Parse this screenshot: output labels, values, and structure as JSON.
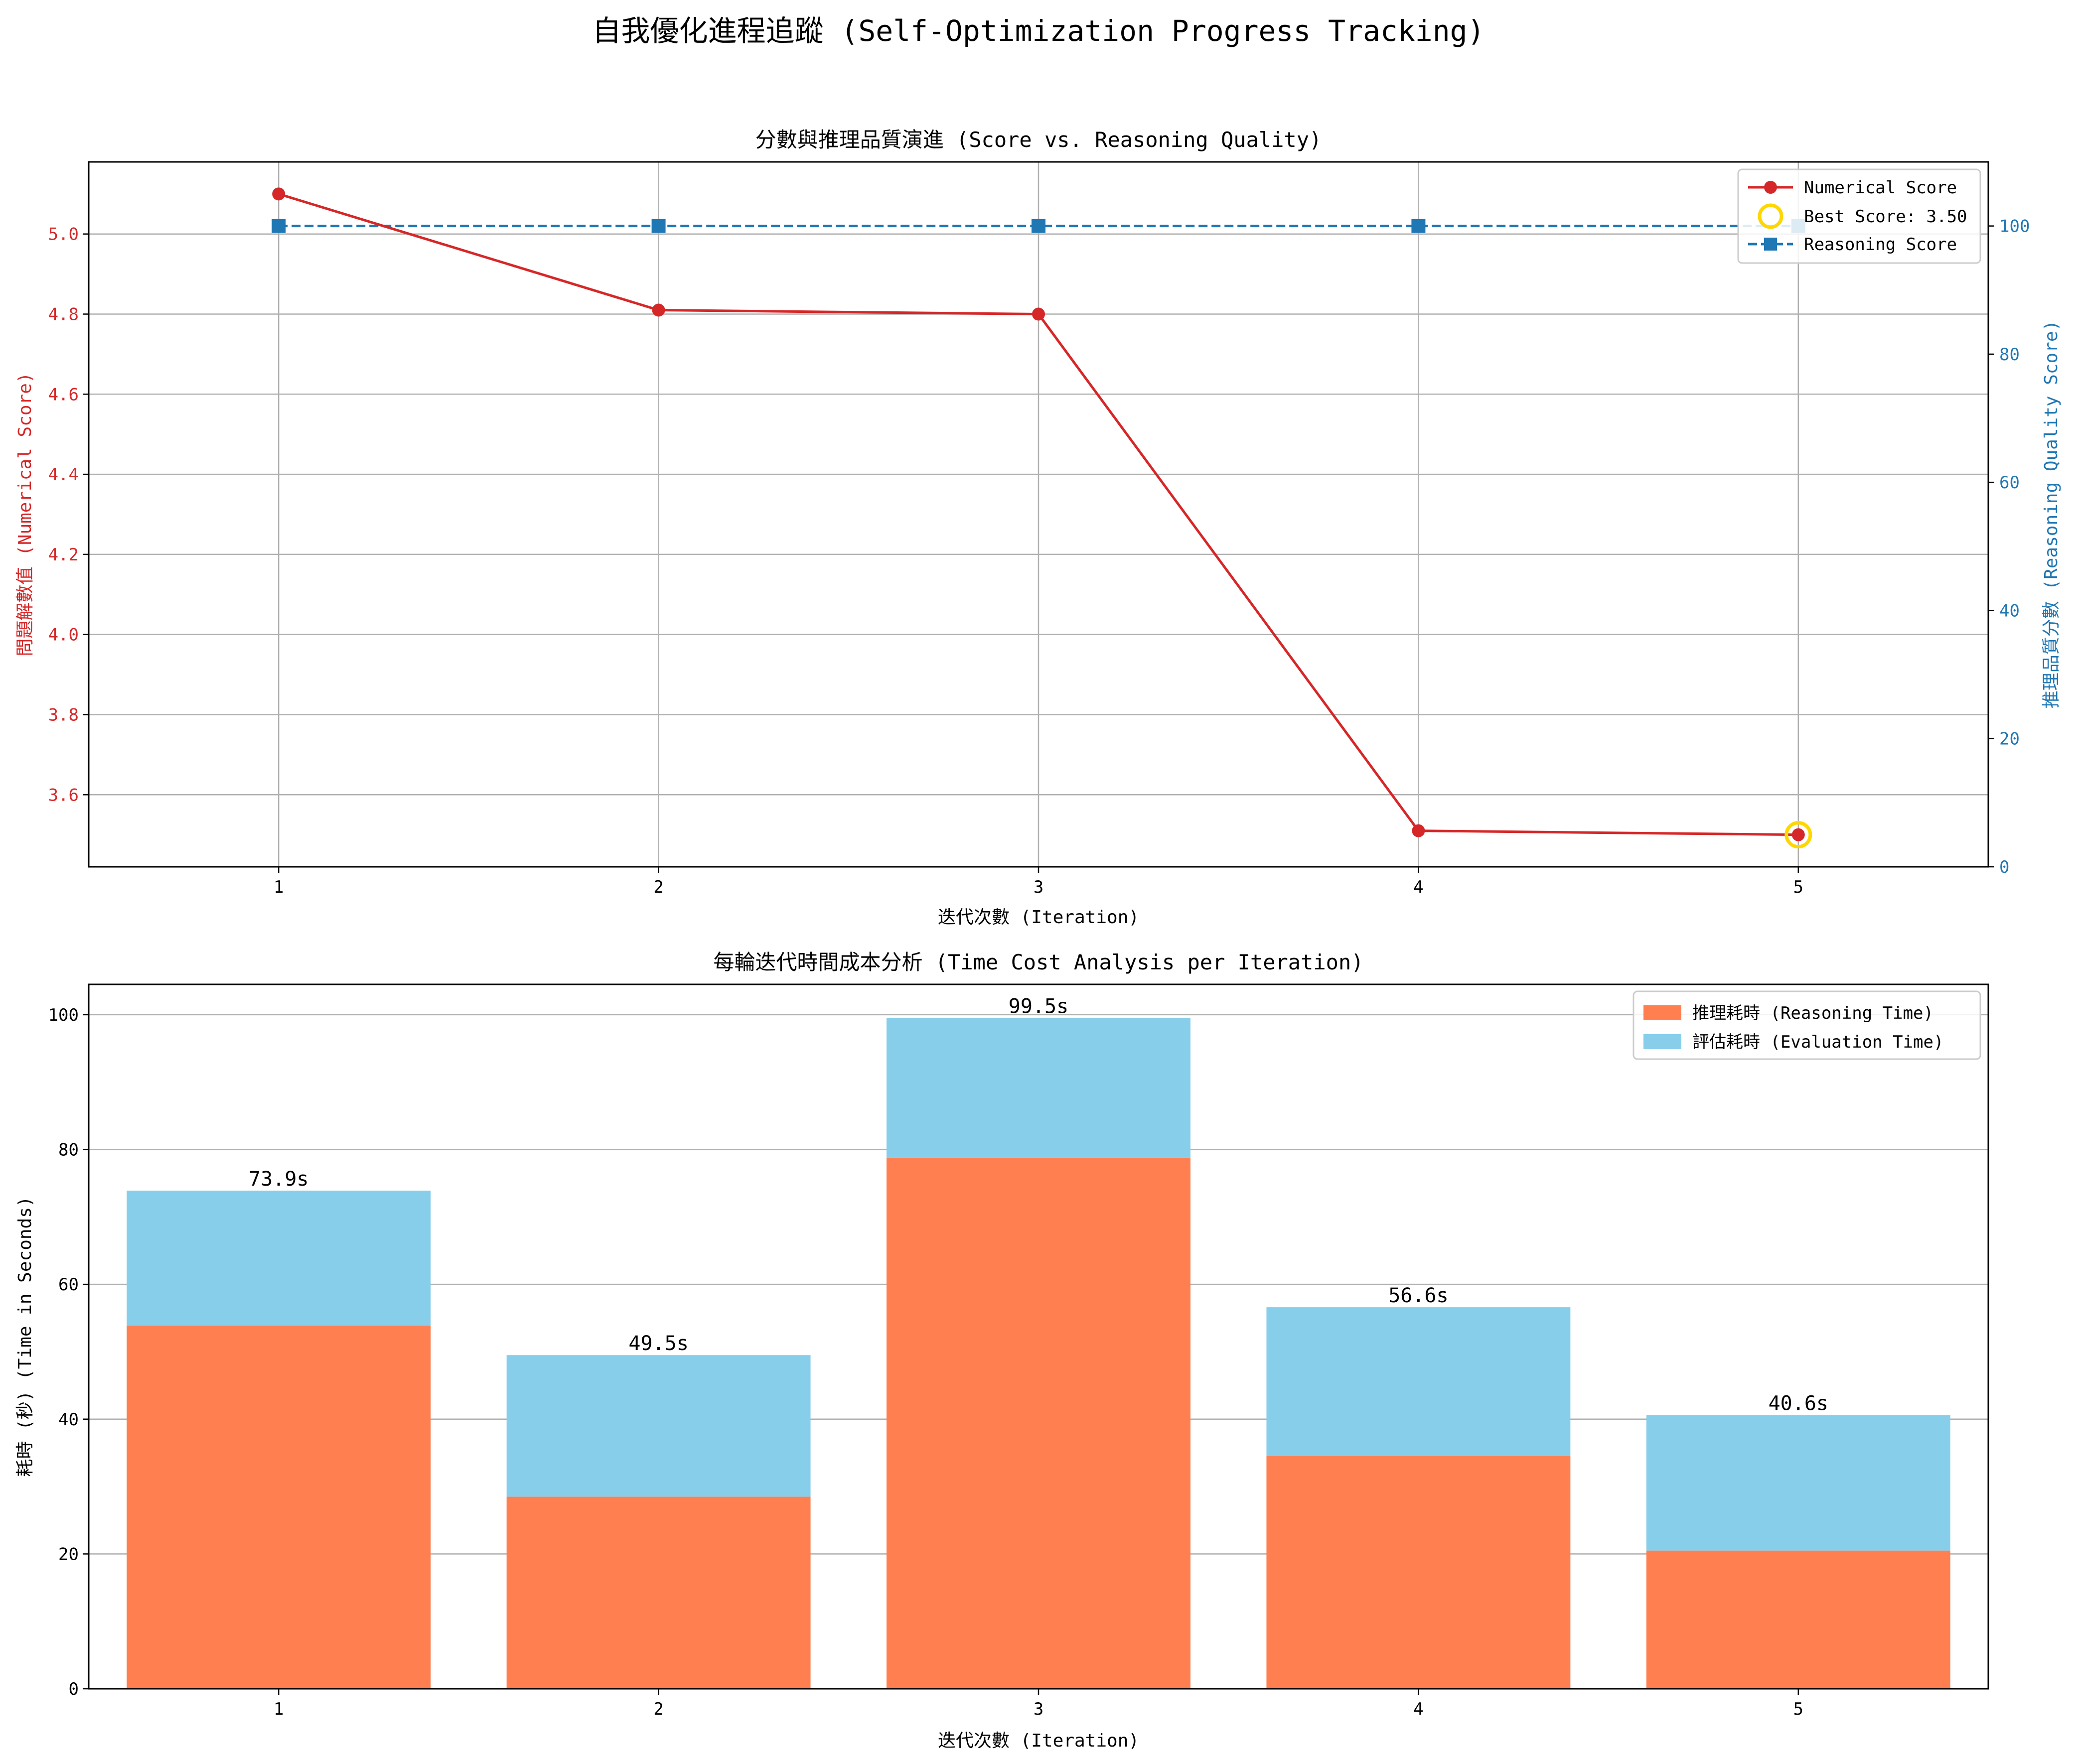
{
  "figure": {
    "suptitle": "自我優化進程追蹤 (Self-Optimization Progress Tracking)"
  },
  "colors": {
    "numerical": "#d62728",
    "reasoning_line": "#1f77b4",
    "best_marker": "#ffd700",
    "reasoning_bar": "#ff7f50",
    "evaluation_bar": "#87ceeb",
    "grid": "#b0b0b0",
    "axis": "#000000"
  },
  "chart_data": [
    {
      "type": "line",
      "title": "分數與推理品質演進 (Score vs. Reasoning Quality)",
      "xlabel": "迭代次數 (Iteration)",
      "ylabel": "問題解數值 (Numerical Score)",
      "ylabel_right": "推理品質分數 (Reasoning Quality Score)",
      "x": [
        1,
        2,
        3,
        4,
        5
      ],
      "xlim": [
        0.5,
        5.5
      ],
      "ylim": [
        3.42,
        5.18
      ],
      "ylim_right": [
        0,
        110
      ],
      "yticks": [
        3.6,
        3.8,
        4.0,
        4.2,
        4.4,
        4.6,
        4.8,
        5.0
      ],
      "yticks_right": [
        0,
        20,
        40,
        60,
        80,
        100
      ],
      "grid": true,
      "legend_position": "top-right",
      "series": [
        {
          "name": "Numerical Score",
          "axis": "left",
          "marker": "circle",
          "style": "solid",
          "values": [
            5.1,
            4.81,
            4.8,
            3.51,
            3.5
          ]
        },
        {
          "name": "Reasoning Score",
          "axis": "right",
          "marker": "square",
          "style": "dashed",
          "values": [
            100,
            100,
            100,
            100,
            100
          ]
        }
      ],
      "annotations": [
        {
          "name": "Best Score: 3.50",
          "x": 5,
          "y": 3.5,
          "marker": "hollow-circle"
        }
      ]
    },
    {
      "type": "bar",
      "stacked": true,
      "title": "每輪迭代時間成本分析 (Time Cost Analysis per Iteration)",
      "xlabel": "迭代次數 (Iteration)",
      "ylabel": "耗時 (秒) (Time in Seconds)",
      "categories": [
        "1",
        "2",
        "3",
        "4",
        "5"
      ],
      "ylim": [
        0,
        104.5
      ],
      "yticks": [
        0,
        20,
        40,
        60,
        80,
        100
      ],
      "grid": "y",
      "legend_position": "top-right",
      "series": [
        {
          "name": "推理耗時 (Reasoning Time)",
          "values": [
            53.9,
            28.5,
            78.8,
            34.6,
            20.5
          ]
        },
        {
          "name": "評估耗時 (Evaluation Time)",
          "values": [
            20.0,
            21.0,
            20.7,
            22.0,
            20.1
          ]
        }
      ],
      "total_labels": [
        "73.9s",
        "49.5s",
        "99.5s",
        "56.6s",
        "40.6s"
      ]
    }
  ]
}
